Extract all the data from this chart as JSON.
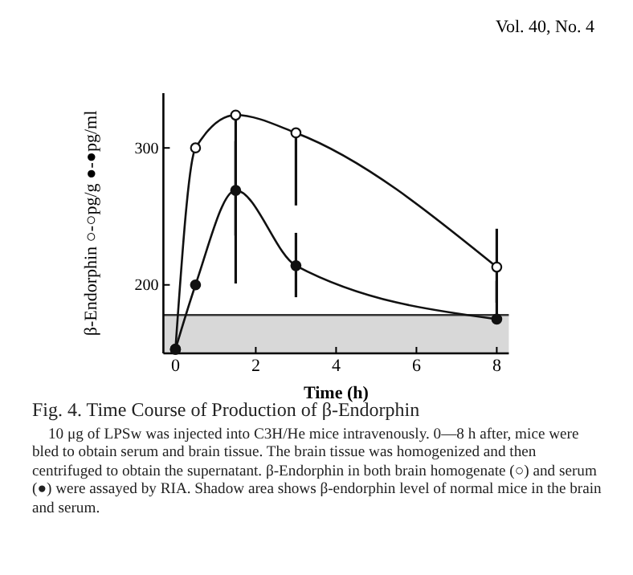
{
  "chart_data": {
    "type": "line",
    "title": "Fig. 4.   Time Course of Production of β-Endorphin",
    "xlabel": "Time (h)",
    "ylabel": "β-Endorphin ○-○pg/g ●-●pg/ml",
    "annotations": [
      "Vol. 40, No. 4",
      "10 μg of LPSw was injected into C3H/He mice intravenously. 0—8 h after, mice were bled to obtain serum and brain tissue. The brain tissue was homogenized and then centrifuged to obtain the supernatant. β-Endorphin in both brain homogenate (○) and serum (●) were assayed by RIA. Shadow area shows β-endorphin level of normal mice in the brain and serum."
    ],
    "x": [
      0,
      0.5,
      1.5,
      3,
      8
    ],
    "series": [
      {
        "color": "#111111",
        "values": [
          153,
          300,
          324,
          311,
          213
        ],
        "errors": [
          null,
          null,
          [
            236,
            324
          ],
          [
            258,
            311
          ],
          [
            187,
            241
          ]
        ]
      },
      {
        "color": "#111111",
        "values": [
          153,
          200,
          269,
          214,
          175
        ],
        "errors": [
          null,
          null,
          [
            201,
            305
          ],
          [
            191,
            238
          ],
          [
            175,
            203
          ]
        ]
      }
    ],
    "xlim": [
      -0.3,
      8.3
    ],
    "ylim": [
      150,
      340
    ],
    "xticks": [
      0,
      2,
      4,
      6,
      8
    ],
    "yticks": [
      200,
      300
    ],
    "bands": [
      {
        "axis": "y",
        "from": 150,
        "to": 178,
        "color": "#d8d8d8"
      }
    ],
    "ref_lines": [
      {
        "axis": "y",
        "value": 178,
        "color": "#333333"
      }
    ],
    "marker": "circle",
    "line_style": "solid",
    "grid": false
  }
}
